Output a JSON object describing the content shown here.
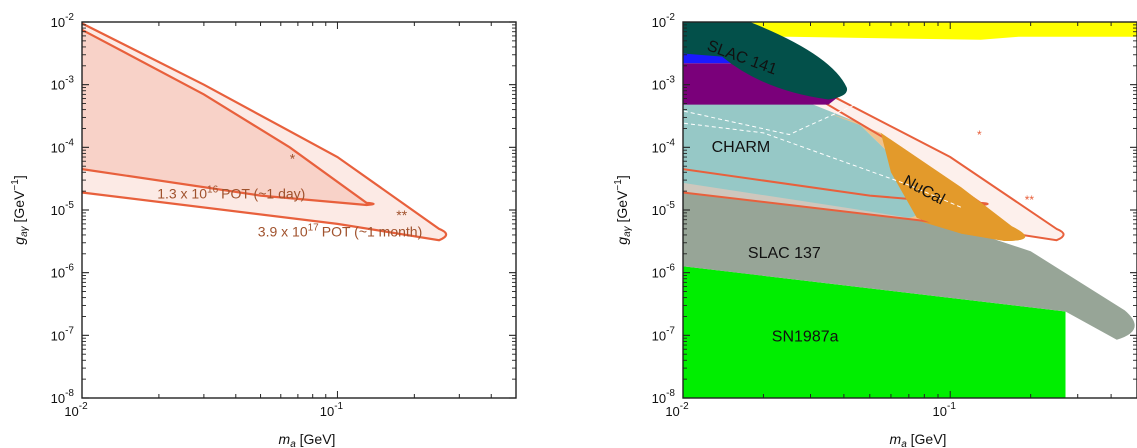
{
  "chart_data": [
    {
      "type": "area",
      "xlabel": "m_a [GeV]",
      "ylabel": "g_aγ [GeV^-1]",
      "xscale": "log",
      "yscale": "log",
      "xlim": [
        0.01,
        0.5
      ],
      "ylim": [
        1e-08,
        0.01
      ],
      "x_ticks": [
        "10^-2",
        "10^-1"
      ],
      "y_ticks": [
        "10^-8",
        "10^-7",
        "10^-6",
        "10^-5",
        "10^-4",
        "10^-3",
        "10^-2"
      ],
      "series": [
        {
          "label": "1.3 x 10^16 POT (~1 day)",
          "marker": "*",
          "color": "#e8603c",
          "upper": {
            "x": [
              0.01,
              0.03,
              0.065,
              0.13
            ],
            "y": [
              0.0075,
              0.0007,
              0.0001,
              1.3e-05
            ]
          },
          "lower": {
            "x": [
              0.01,
              0.05,
              0.13
            ],
            "y": [
              4.5e-05,
              1.7e-05,
              1.2e-05
            ]
          }
        },
        {
          "label": "3.9 x 10^17 POT (~1 month)",
          "marker": "**",
          "color": "#e8603c",
          "upper": {
            "x": [
              0.01,
              0.03,
              0.1,
              0.25
            ],
            "y": [
              0.0095,
              0.001,
              7e-05,
              5e-06
            ]
          },
          "lower": {
            "x": [
              0.01,
              0.1,
              0.25
            ],
            "y": [
              1.9e-05,
              6e-06,
              3.3e-06
            ]
          }
        }
      ],
      "annotations": [
        {
          "text": "*",
          "x": 0.065,
          "y": 8e-05
        },
        {
          "text": "1.3 x 10",
          "sup": "16",
          "tail": "POT (~1 day)",
          "x": 0.012,
          "y": 2.2e-05
        },
        {
          "text": "**",
          "x": 0.17,
          "y": 1e-05
        },
        {
          "text": "3.9 x 10",
          "sup": "17",
          "tail": "POT (~1 month)",
          "x": 0.04,
          "y": 5.5e-06
        }
      ]
    },
    {
      "type": "area",
      "xlabel": "m_a [GeV]",
      "ylabel": "g_aγ [GeV^-1]",
      "xscale": "log",
      "yscale": "log",
      "xlim": [
        0.01,
        0.5
      ],
      "ylim": [
        1e-08,
        0.01
      ],
      "x_ticks": [
        "10^-2",
        "10^-1"
      ],
      "y_ticks": [
        "10^-8",
        "10^-7",
        "10^-6",
        "10^-5",
        "10^-4",
        "10^-3",
        "10^-2"
      ],
      "regions": [
        {
          "label": "SN1987a",
          "color": "#00ee00"
        },
        {
          "label": "SLAC 137",
          "color": "#97a597"
        },
        {
          "label": "CHARM",
          "color": "#1ba7ab"
        },
        {
          "label": "NuCal",
          "color": "#e39a2b"
        },
        {
          "label": "SLAC 141",
          "color": "#03504a"
        },
        {
          "label": "",
          "color": "#7a007a"
        },
        {
          "label": "",
          "color": "#1a1aff"
        },
        {
          "label": "",
          "color": "#ffff00"
        }
      ],
      "markers": [
        "*",
        "**"
      ]
    }
  ],
  "colors": {
    "contour": "#e8603c",
    "contour_fill": "#fbe3dc",
    "text_annot": "#a0522d"
  }
}
